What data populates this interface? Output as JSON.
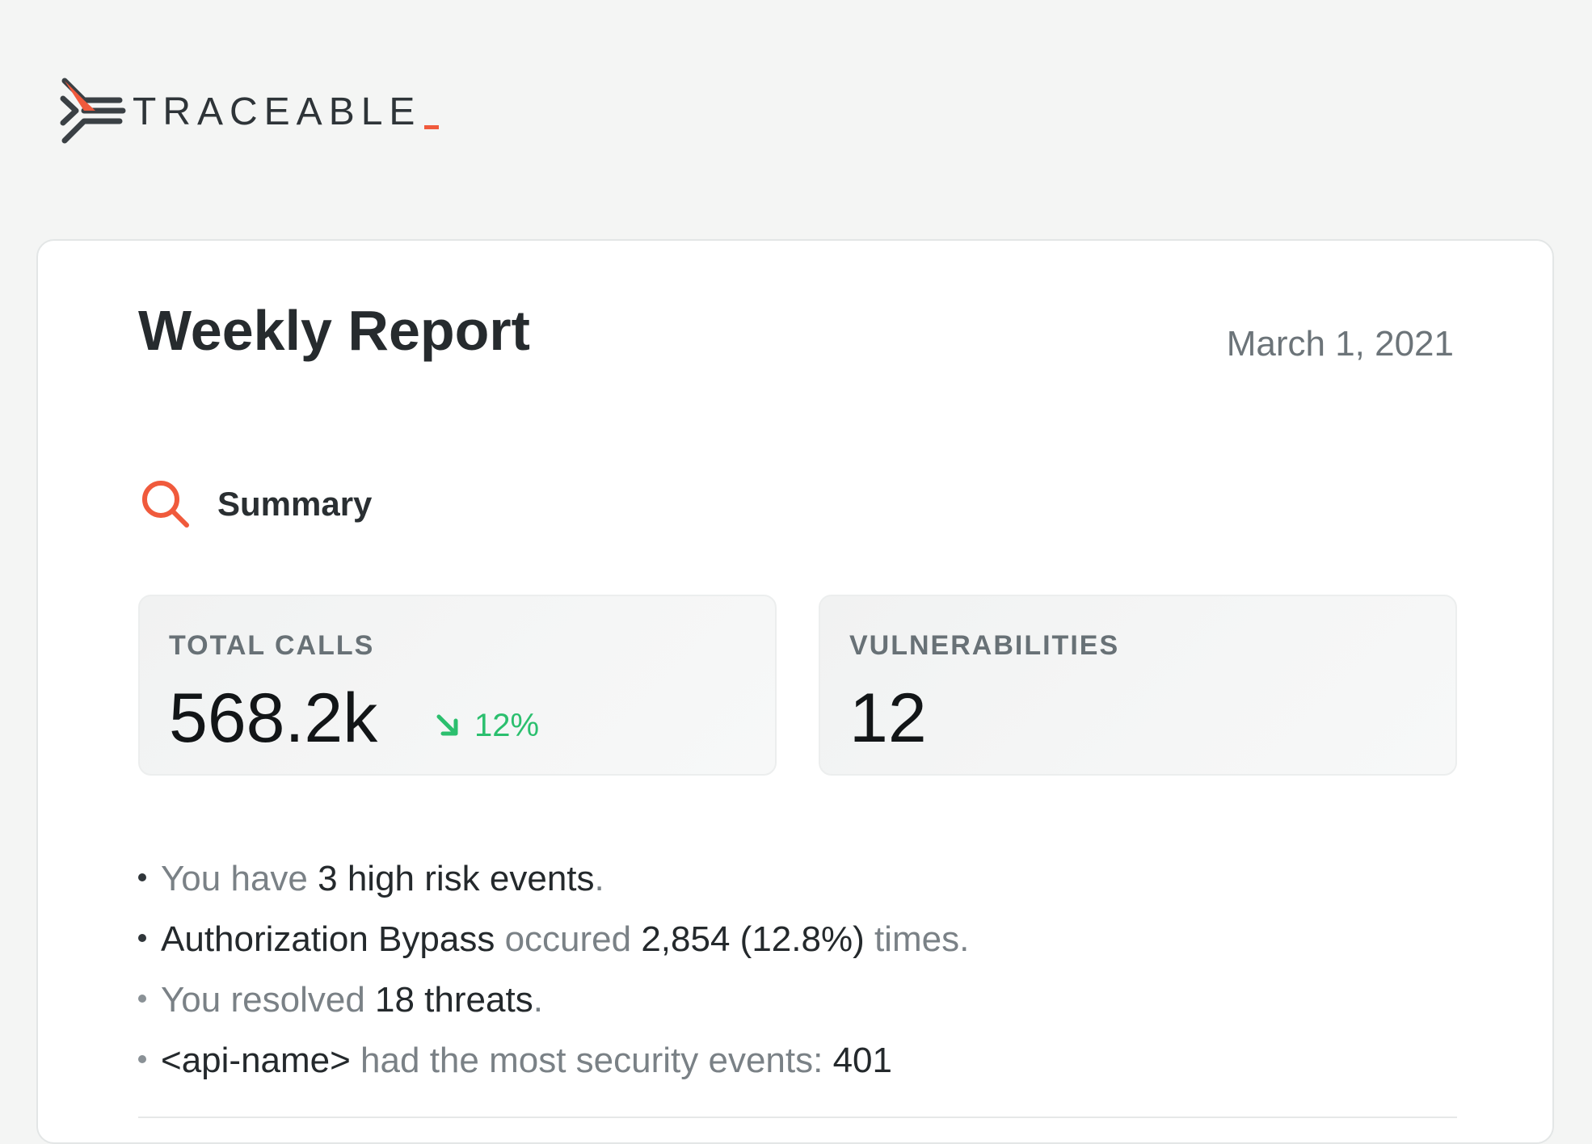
{
  "brand": {
    "name": "TRACEABLE",
    "accent_color": "#f05a3c",
    "logo_icon": "traceable-logo-icon"
  },
  "report": {
    "title": "Weekly Report",
    "date": "March 1, 2021"
  },
  "summary": {
    "icon": "search-icon",
    "title": "Summary"
  },
  "stats": [
    {
      "label": "TOTAL CALLS",
      "value": "568.2k",
      "trend": {
        "direction": "down",
        "icon": "arrow-down-right-icon",
        "value": "12%",
        "color": "#2bbf6e"
      }
    },
    {
      "label": "VULNERABILITIES",
      "value": "12"
    }
  ],
  "bullets": [
    {
      "a": "You have ",
      "b": "3 high risk events",
      "c": "."
    },
    {
      "a": "Authorization Bypass",
      "b": " occured ",
      "c": "2,854 (12.8%)",
      "d": " times."
    },
    {
      "a": "You resolved ",
      "b": "18 threats",
      "c": "."
    },
    {
      "a": "<api-name>",
      "b": " had the most security events: ",
      "c": "401"
    }
  ]
}
